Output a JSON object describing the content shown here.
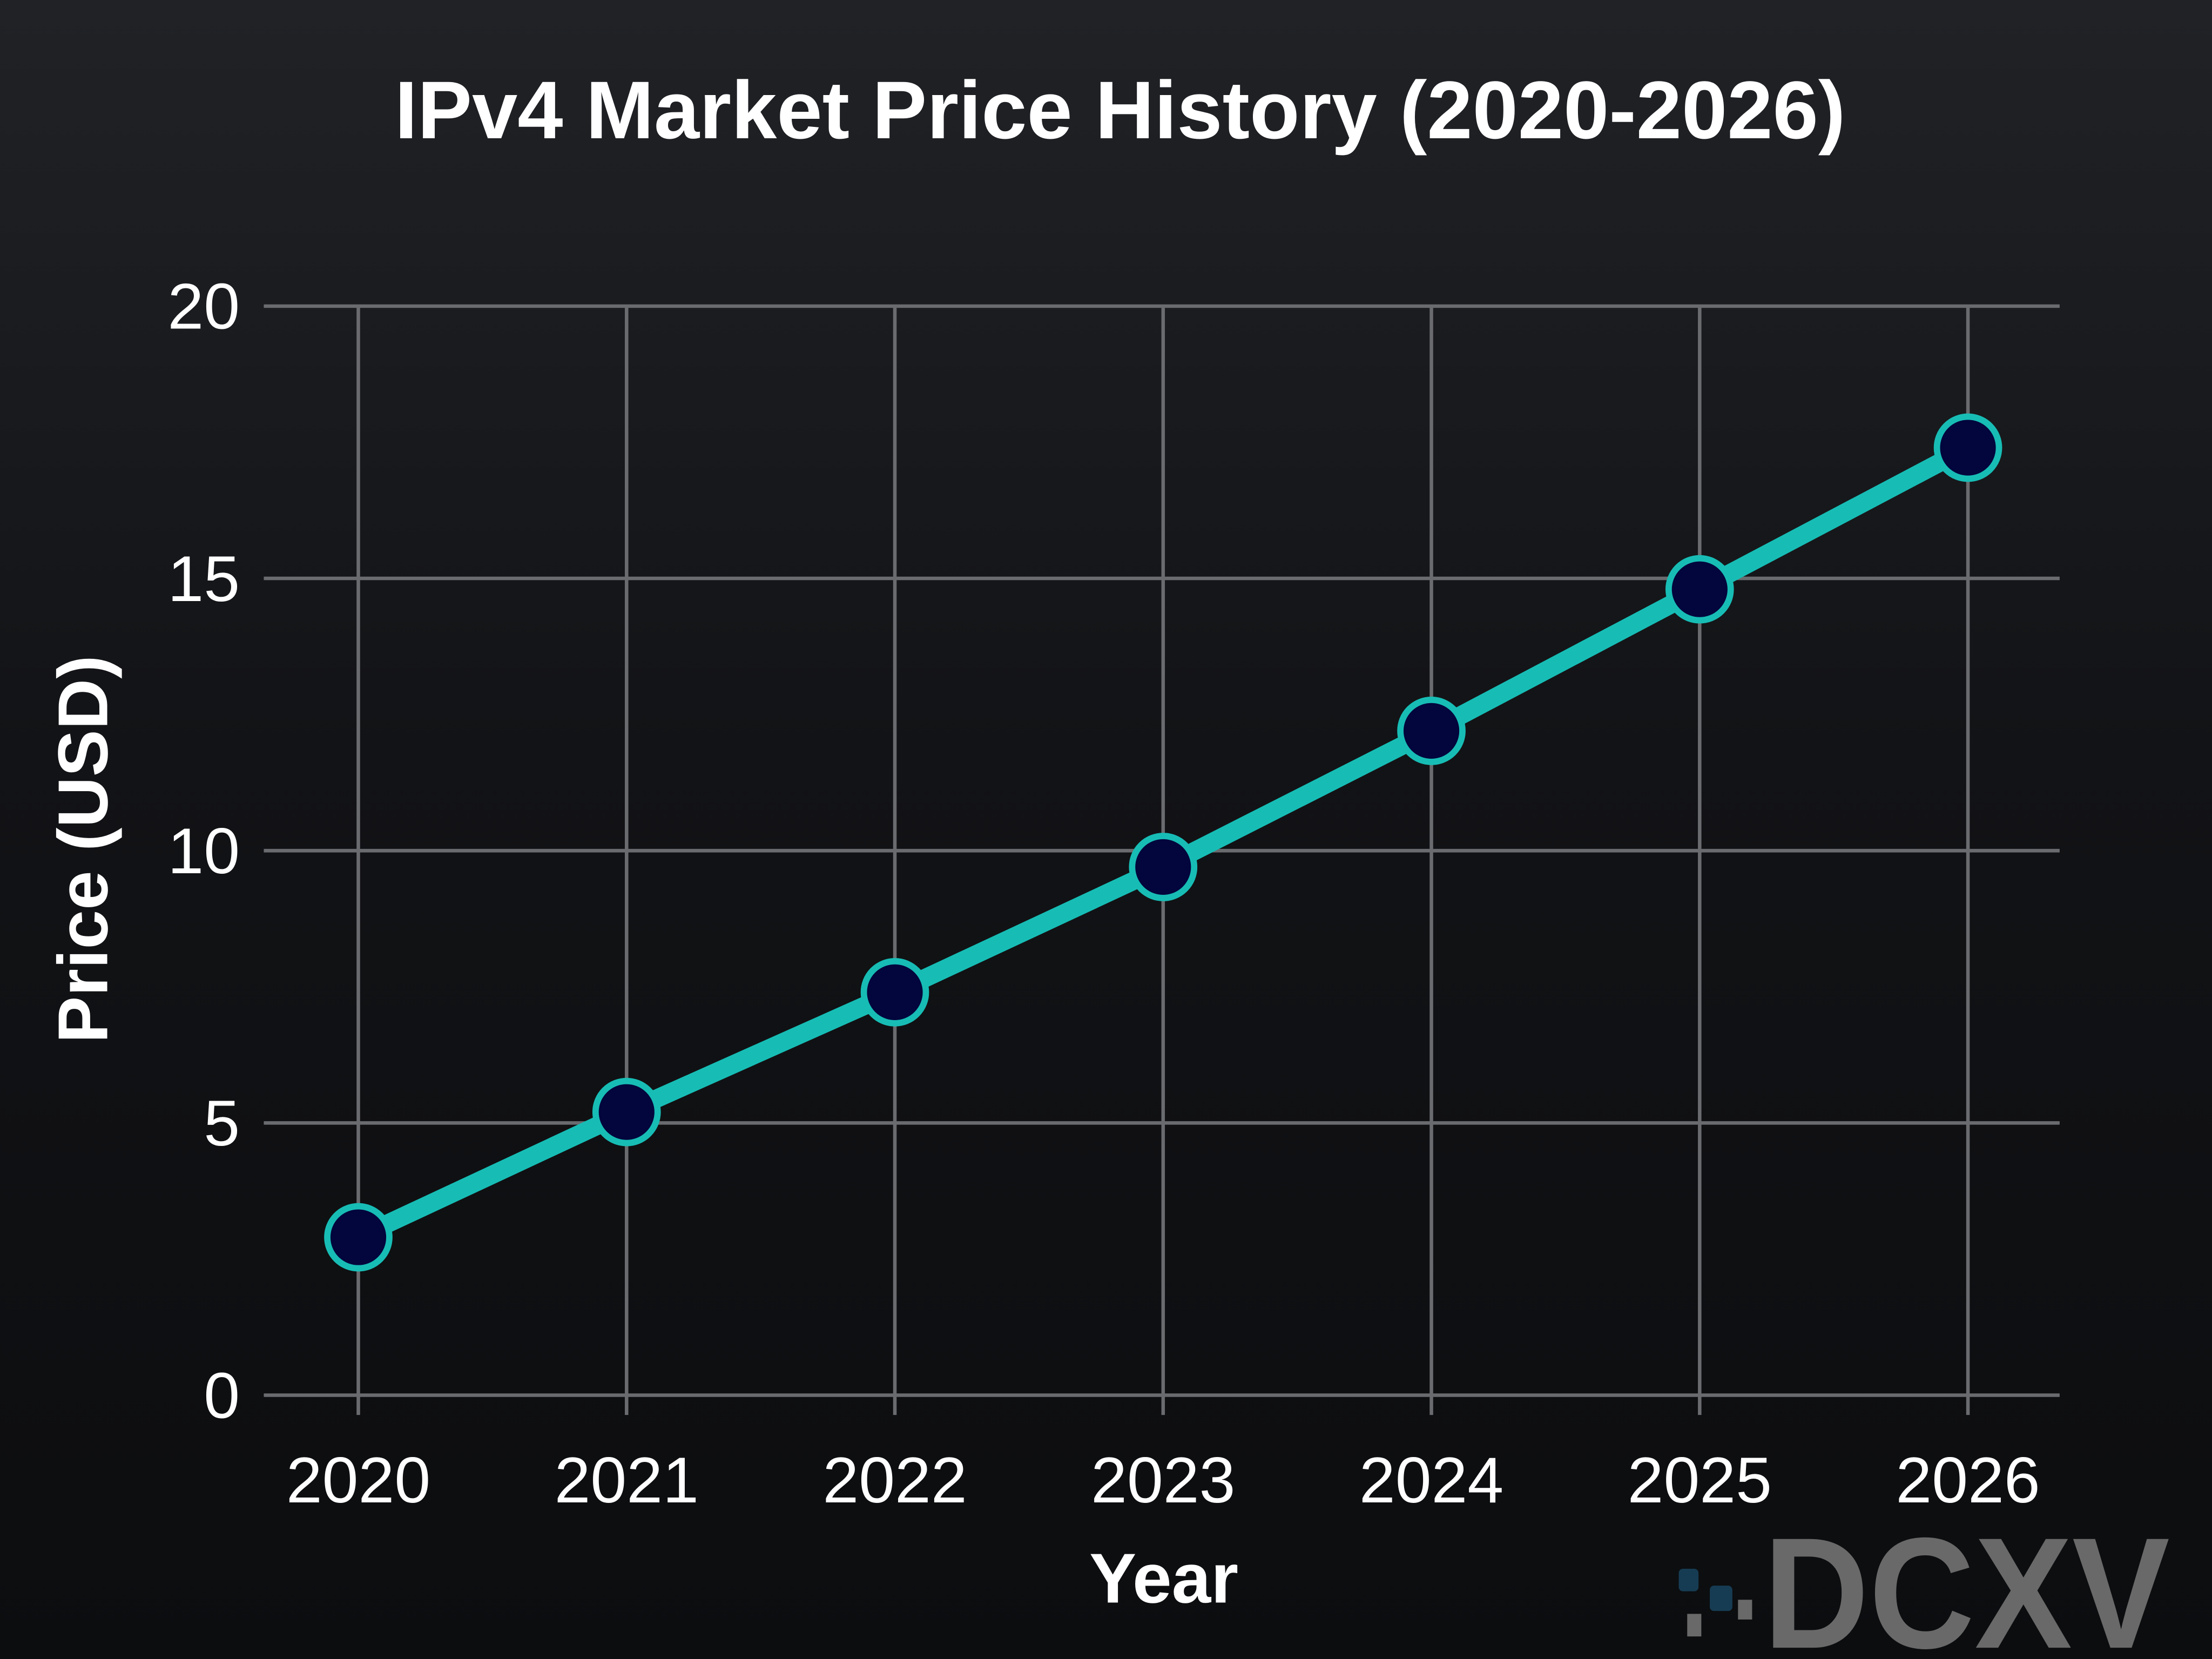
{
  "chart_data": {
    "type": "line",
    "title": "IPv4 Market Price History (2020-2026)",
    "xlabel": "Year",
    "ylabel": "Price (USD)",
    "x": [
      "2020",
      "2021",
      "2022",
      "2023",
      "2024",
      "2025",
      "2026"
    ],
    "series": [
      {
        "values": [
          2.9,
          5.2,
          7.4,
          9.7,
          12.2,
          14.8,
          17.4
        ]
      }
    ],
    "ylim": [
      0,
      20
    ],
    "yticks": [
      "0",
      "5",
      "10",
      "15",
      "20"
    ],
    "grid": true,
    "legend": "none",
    "colors": {
      "line": "#17bdb5",
      "marker_fill": "#03053d",
      "marker_edge": "#17bdb5",
      "grid": "#6a6b6e",
      "background": "#131417",
      "text": "#ffffff"
    }
  },
  "watermark": {
    "text": "DCXV",
    "color": "#6e6e6e",
    "accent": "#173f57"
  }
}
